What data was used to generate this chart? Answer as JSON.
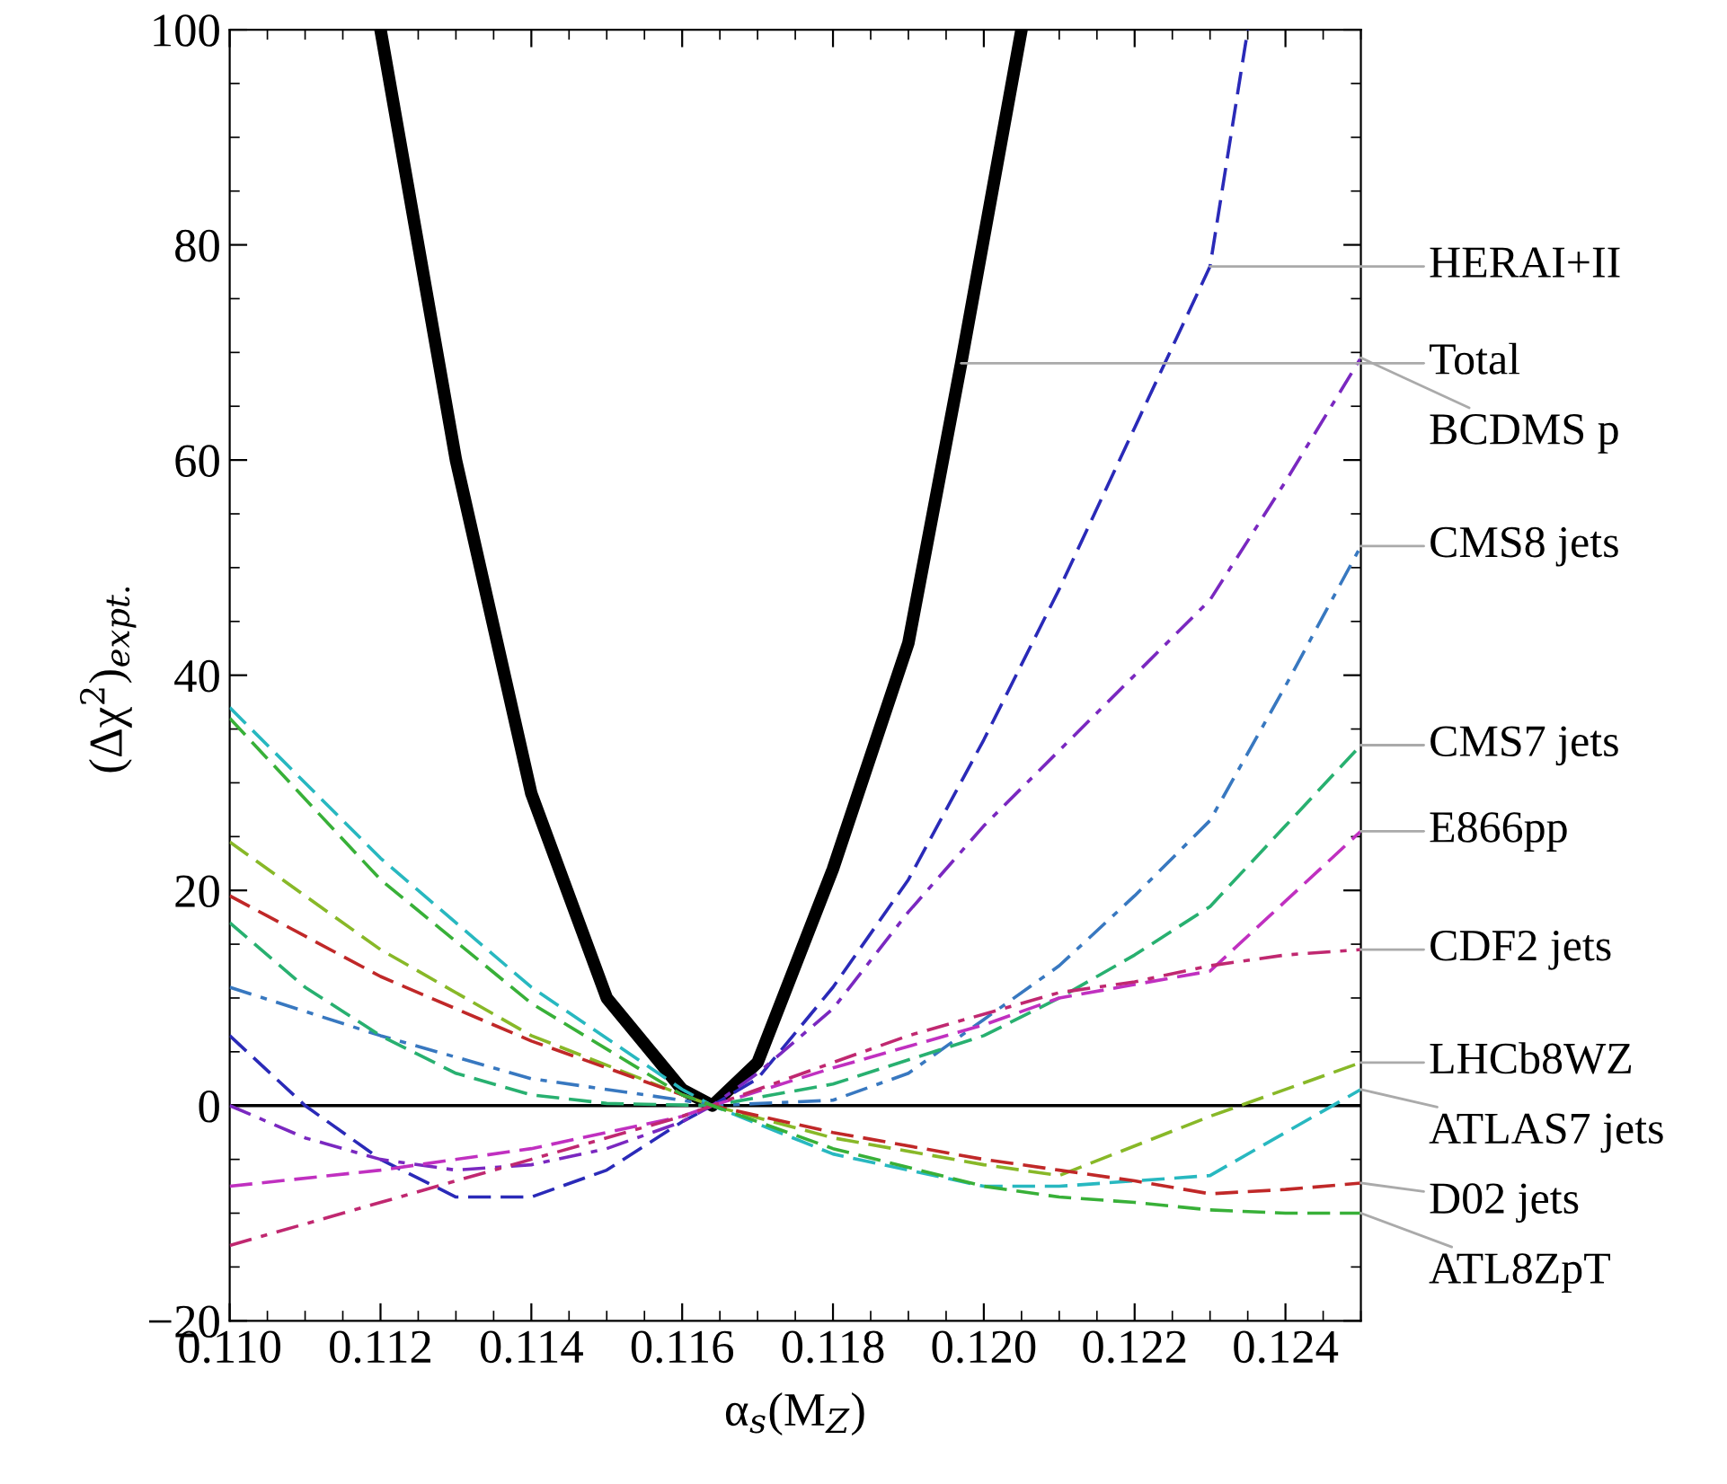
{
  "chart_data": {
    "type": "line",
    "xlabel": "α$_{s}$(M$_{Z}$)",
    "ylabel": "(Δχ$^{2}$)$_{expt.}$",
    "xlim": [
      0.11,
      0.125
    ],
    "ylim": [
      -20,
      100
    ],
    "xticks": [
      {
        "value": 0.11,
        "label": "0.110"
      },
      {
        "value": 0.112,
        "label": "0.112"
      },
      {
        "value": 0.114,
        "label": "0.114"
      },
      {
        "value": 0.116,
        "label": "0.116"
      },
      {
        "value": 0.118,
        "label": "0.118"
      },
      {
        "value": 0.12,
        "label": "0.120"
      },
      {
        "value": 0.122,
        "label": "0.122"
      },
      {
        "value": 0.124,
        "label": "0.124"
      }
    ],
    "yticks": [
      {
        "value": -20,
        "label": "−20"
      },
      0,
      20,
      40,
      60,
      80,
      100
    ],
    "grid": false,
    "legend": false,
    "ref_lines": [
      {
        "axis": "y",
        "value": 0,
        "color": "#000000",
        "line_style": "solid"
      }
    ],
    "series": [
      {
        "color": "#000000",
        "line_style": "solid",
        "x": [
          0.112,
          0.113,
          0.114,
          0.115,
          0.116,
          0.1164,
          0.117,
          0.118,
          0.119,
          0.1197,
          0.1205
        ],
        "values": [
          100,
          60,
          29,
          10,
          1.5,
          0,
          4,
          22,
          43,
          69,
          100
        ]
      },
      {
        "color": "#2a2ab8",
        "line_style": "dashed",
        "x": [
          0.11,
          0.111,
          0.112,
          0.113,
          0.114,
          0.115,
          0.116,
          0.1164,
          0.117,
          0.118,
          0.119,
          0.12,
          0.121,
          0.122,
          0.123,
          0.1235
        ],
        "values": [
          6.5,
          0,
          -5,
          -8.5,
          -8.5,
          -6,
          -1.5,
          0,
          2.5,
          11,
          21,
          34,
          48,
          63,
          78,
          100
        ]
      },
      {
        "color": "#7a28c0",
        "line_style": "dashdot",
        "x": [
          0.11,
          0.111,
          0.112,
          0.113,
          0.114,
          0.115,
          0.116,
          0.1164,
          0.117,
          0.118,
          0.119,
          0.12,
          0.121,
          0.122,
          0.123,
          0.124,
          0.125
        ],
        "values": [
          0,
          -3,
          -5,
          -6,
          -5.5,
          -4,
          -1.5,
          0,
          3,
          9,
          18,
          26,
          33,
          40,
          47,
          58,
          69.5
        ]
      },
      {
        "color": "#3878c0",
        "line_style": "dashdot",
        "x": [
          0.11,
          0.112,
          0.114,
          0.116,
          0.1164,
          0.118,
          0.119,
          0.12,
          0.121,
          0.122,
          0.123,
          0.124,
          0.125
        ],
        "values": [
          11,
          6.5,
          2.5,
          0.5,
          0,
          0.5,
          3,
          8,
          13,
          19.5,
          26.5,
          39,
          52
        ]
      },
      {
        "color": "#28b070",
        "line_style": "dashed",
        "x": [
          0.11,
          0.111,
          0.112,
          0.113,
          0.114,
          0.115,
          0.1164,
          0.118,
          0.12,
          0.121,
          0.122,
          0.123,
          0.124,
          0.125
        ],
        "values": [
          17,
          11,
          6.5,
          3,
          1,
          0.2,
          0,
          2,
          6.5,
          10,
          14,
          18.5,
          26,
          33.5
        ]
      },
      {
        "color": "#c030c0",
        "line_style": "dashed",
        "x": [
          0.11,
          0.112,
          0.114,
          0.116,
          0.1164,
          0.118,
          0.12,
          0.121,
          0.123,
          0.124,
          0.125
        ],
        "values": [
          -7.5,
          -6,
          -4,
          -1,
          0,
          3.5,
          7.5,
          10,
          12.5,
          19,
          25.5
        ]
      },
      {
        "color": "#c02870",
        "line_style": "dashdot",
        "x": [
          0.11,
          0.112,
          0.114,
          0.116,
          0.1164,
          0.118,
          0.119,
          0.12,
          0.121,
          0.122,
          0.123,
          0.124,
          0.125
        ],
        "values": [
          -13,
          -9,
          -5,
          -1,
          0,
          4,
          6.5,
          8.5,
          10.5,
          11.5,
          13,
          14,
          14.5
        ]
      },
      {
        "color": "#88b828",
        "line_style": "dashed",
        "x": [
          0.11,
          0.112,
          0.114,
          0.116,
          0.1164,
          0.118,
          0.12,
          0.121,
          0.123,
          0.125
        ],
        "values": [
          24.5,
          14.5,
          6.5,
          1,
          0,
          -3,
          -5.5,
          -6.5,
          -1,
          4
        ]
      },
      {
        "color": "#28b8c0",
        "line_style": "dashed",
        "x": [
          0.11,
          0.112,
          0.114,
          0.116,
          0.1164,
          0.118,
          0.12,
          0.121,
          0.122,
          0.123,
          0.125
        ],
        "values": [
          37,
          23,
          11,
          1.5,
          0,
          -4.5,
          -7.5,
          -7.5,
          -7,
          -6.5,
          1.5
        ]
      },
      {
        "color": "#c02828",
        "line_style": "dashed",
        "x": [
          0.11,
          0.112,
          0.114,
          0.116,
          0.1164,
          0.118,
          0.12,
          0.121,
          0.122,
          0.123,
          0.124,
          0.125
        ],
        "values": [
          19.5,
          12,
          6,
          1,
          0,
          -2.5,
          -5,
          -6,
          -7,
          -8.2,
          -7.8,
          -7.2
        ]
      },
      {
        "color": "#38b038",
        "line_style": "dashed",
        "x": [
          0.11,
          0.112,
          0.114,
          0.116,
          0.1164,
          0.118,
          0.12,
          0.121,
          0.122,
          0.123,
          0.124,
          0.125
        ],
        "values": [
          36,
          21,
          9.5,
          1,
          0,
          -4,
          -7.5,
          -8.5,
          -9,
          -9.7,
          -10,
          -10
        ]
      }
    ],
    "annotations": [
      {
        "text": "HERAI+II",
        "x": 0.123,
        "y": 78
      },
      {
        "text": "Total",
        "x": 0.1197,
        "y": 69
      },
      {
        "text": "BCDMS p",
        "x": 0.125,
        "y": 69.5
      },
      {
        "text": "CMS8 jets",
        "x": 0.125,
        "y": 52
      },
      {
        "text": "CMS7 jets",
        "x": 0.125,
        "y": 33.5
      },
      {
        "text": "E866pp",
        "x": 0.125,
        "y": 25.5
      },
      {
        "text": "CDF2 jets",
        "x": 0.125,
        "y": 14.5
      },
      {
        "text": "LHCb8WZ",
        "x": 0.125,
        "y": 4
      },
      {
        "text": "ATLAS7 jets",
        "x": 0.125,
        "y": 1.5
      },
      {
        "text": "D02 jets",
        "x": 0.125,
        "y": -7.2
      },
      {
        "text": "ATL8ZpT",
        "x": 0.125,
        "y": -10
      }
    ]
  }
}
